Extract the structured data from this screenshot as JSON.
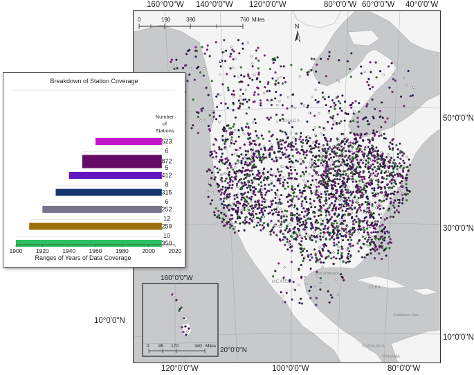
{
  "map": {
    "top_longitudes": [
      "160°0'0\"W",
      "140°0'0\"W",
      "120°0'0\"W",
      "80°0'0\"W",
      "60°0'0\"W",
      "40°0'0\"W"
    ],
    "bottom_longitudes": [
      "120°0'0\"W",
      "100°0'0\"W",
      "80°0'0\"W"
    ],
    "right_latitudes": [
      "50°0'0\"N",
      "30°0'0\"N",
      "10°0'0\"N"
    ],
    "left_latitude": "10°0'0\"N",
    "scale_bar": {
      "ticks": [
        "0",
        "190",
        "380",
        "760"
      ],
      "unit": "Miles"
    },
    "north_arrow": "N",
    "place_labels": [
      "CANADA",
      "MEXICO",
      "Gulf of Mexico",
      "CUBA",
      "Caribbean Sea",
      "COSTA RICA",
      "PANAMA"
    ],
    "inset": {
      "longitude": "160°0'0\"W",
      "latitude": "20°0'0\"N",
      "scale_bar": {
        "ticks": [
          "0",
          "85",
          "170",
          "340"
        ],
        "unit": "Miles"
      }
    },
    "colors": {
      "land": "#f4f4f4",
      "water": "#c8c9cb",
      "station_fill": [
        "#9b1a9b",
        "#5a0a5a",
        "#1a1a6e",
        "#2a8a2a",
        "#6b2a8b",
        "#2a2a2a",
        "#ffffff"
      ]
    }
  },
  "chart_data": {
    "type": "bar",
    "title": "Breakdown of Station Coverage",
    "xlabel": "Ranges of Years of Data Coverage",
    "ylabel": "Number of Stations",
    "xlim": [
      1900,
      2020
    ],
    "xticks": [
      1900,
      1920,
      1940,
      1960,
      1980,
      2000,
      2020
    ],
    "bars": [
      {
        "start": 1960,
        "end": 2010,
        "count": "523",
        "color": "#c214c8",
        "small": ""
      },
      {
        "start": 1950,
        "end": 2010,
        "count": "872",
        "color": "#650a67",
        "small": "6"
      },
      {
        "start": 1940,
        "end": 2010,
        "count": "412",
        "color": "#6317c0",
        "small": "5"
      },
      {
        "start": 1930,
        "end": 2010,
        "count": "315",
        "color": "#12356e",
        "small": "8"
      },
      {
        "start": 1920,
        "end": 2010,
        "count": "252",
        "color": "#77738c",
        "small": "6"
      },
      {
        "start": 1910,
        "end": 2010,
        "count": "259",
        "color": "#9d6c0c",
        "small": "12"
      },
      {
        "start": 1900,
        "end": 2010,
        "count": "350",
        "color": "#2bc160",
        "small": "10"
      }
    ]
  }
}
